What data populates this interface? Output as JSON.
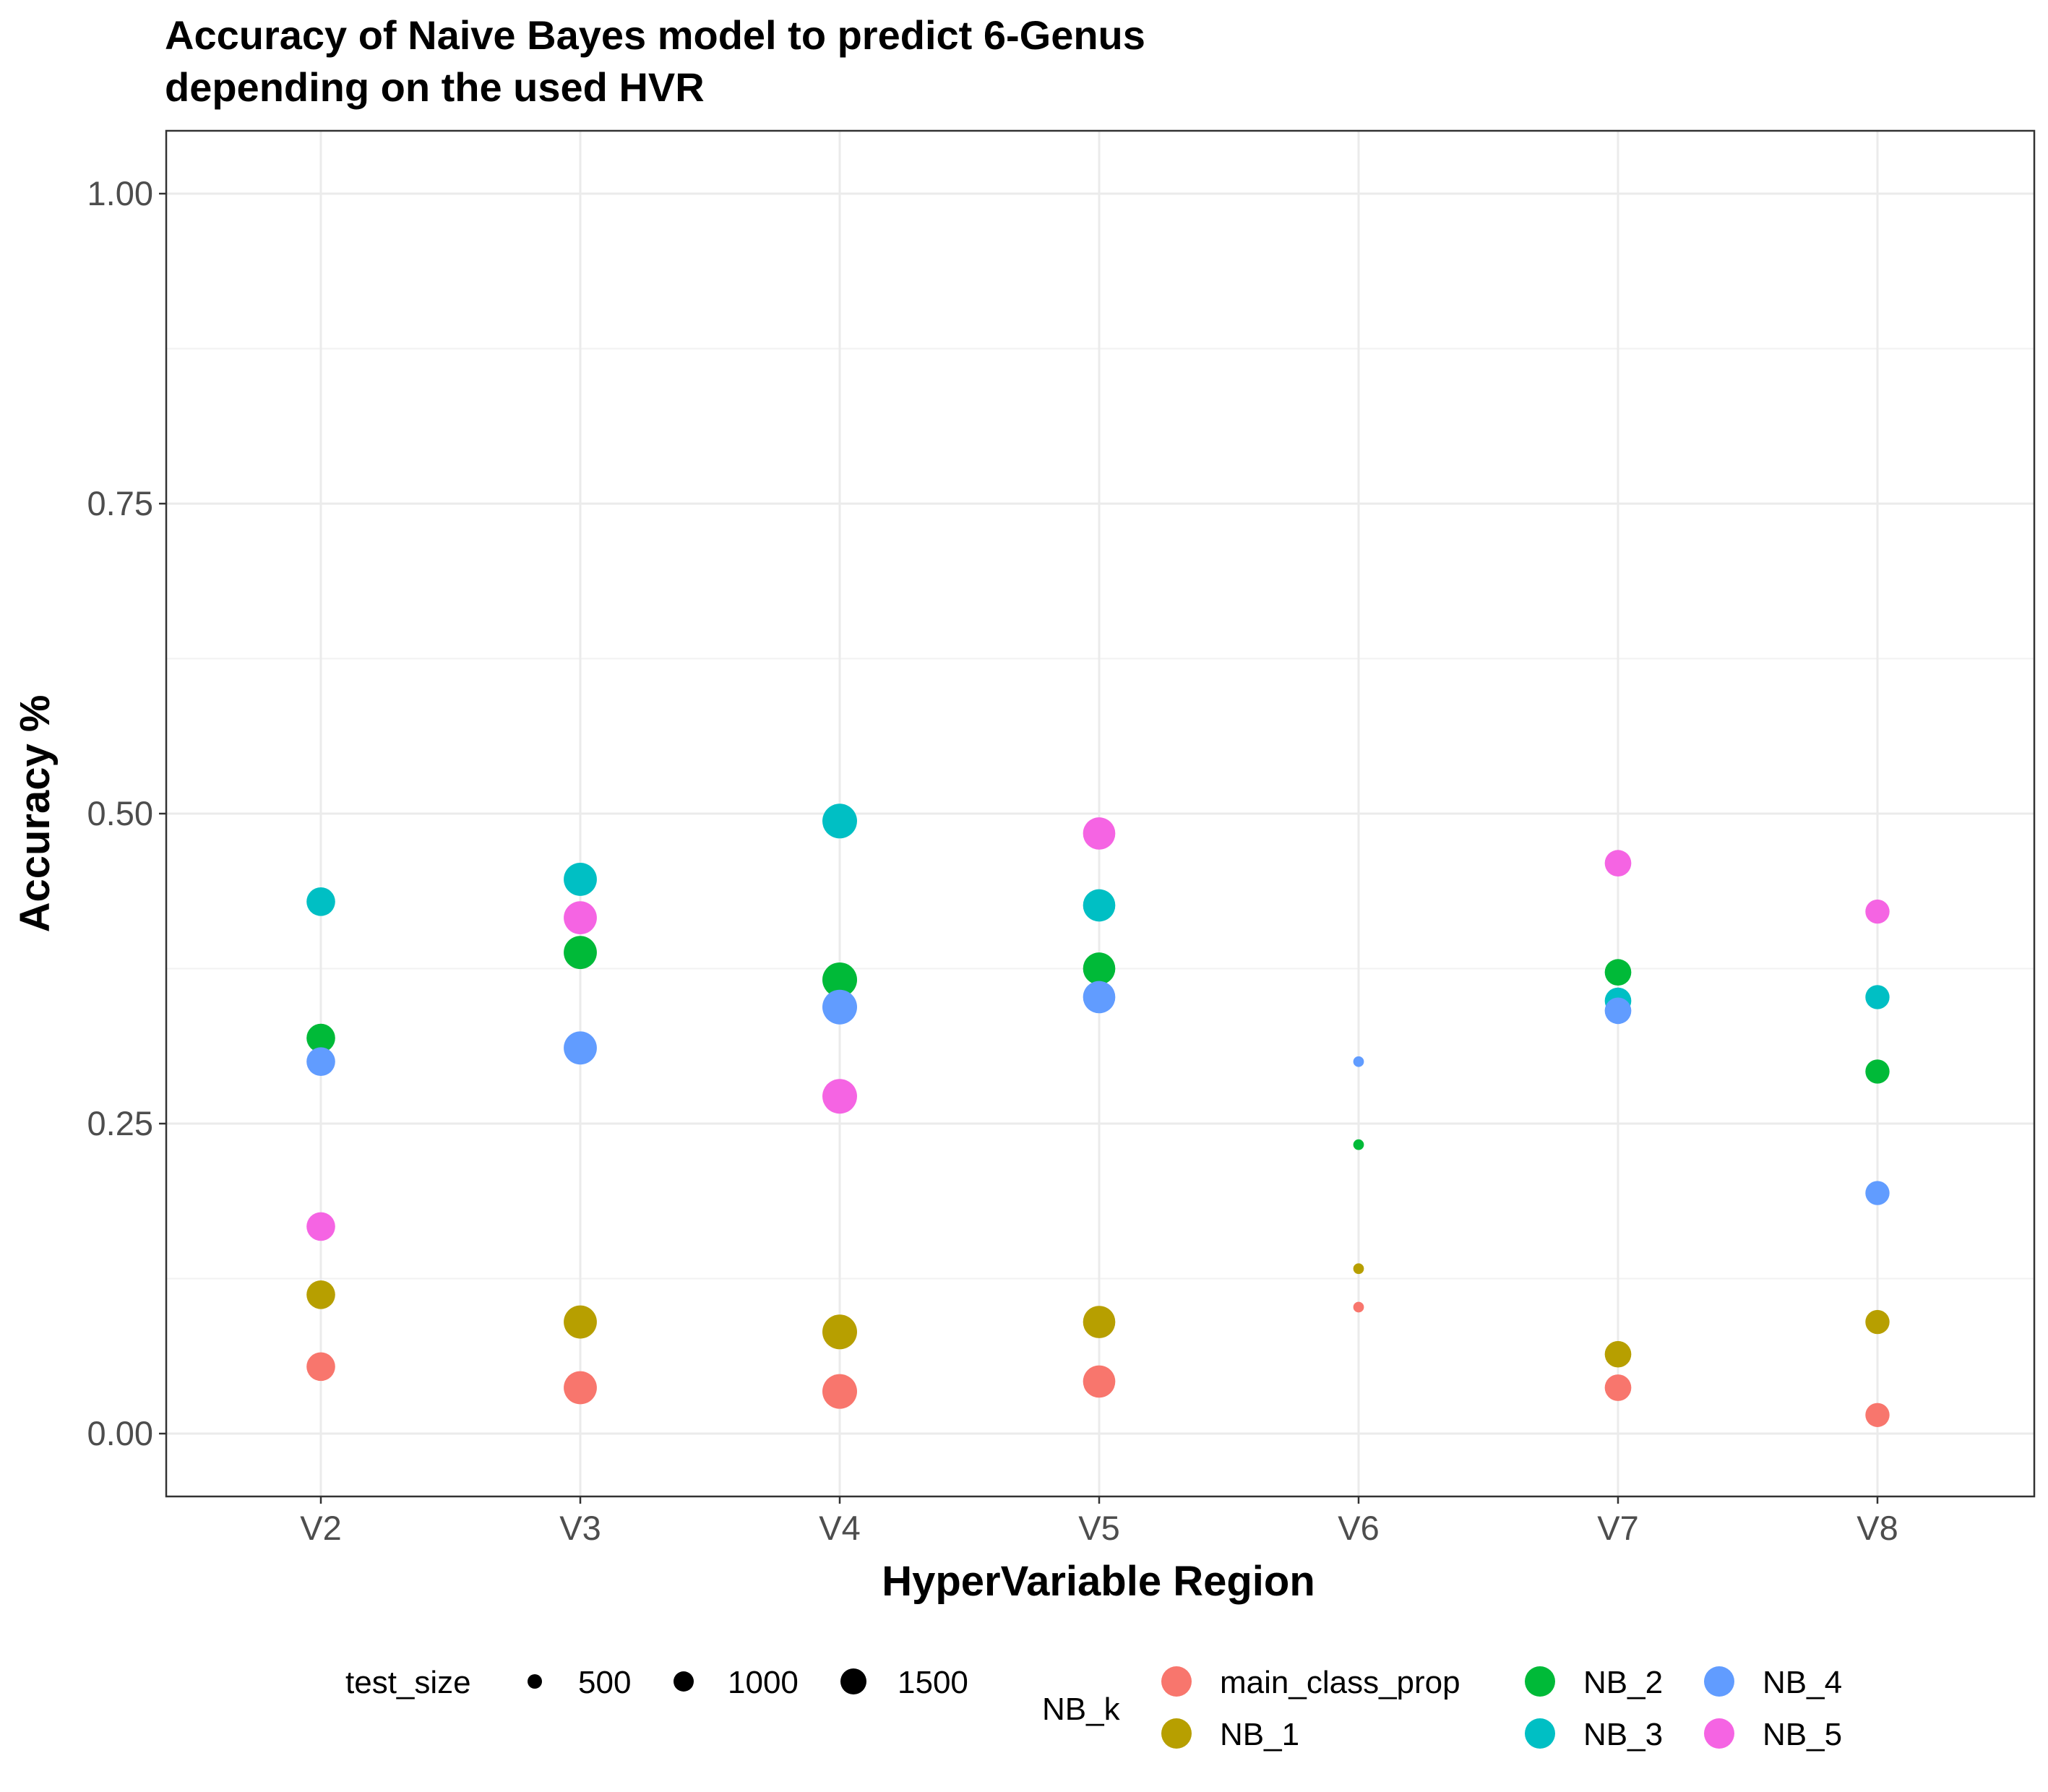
{
  "chart_data": {
    "type": "scatter",
    "title_line1": "Accuracy of Naive Bayes model to predict 6-Genus",
    "title_line2": "depending on the used HVR",
    "xlabel": "HyperVariable Region",
    "ylabel": "Accuracy %",
    "categories": [
      "V2",
      "V3",
      "V4",
      "V5",
      "V6",
      "V7",
      "V8"
    ],
    "ylim": [
      -0.1,
      1.05
    ],
    "yticks": [
      0.0,
      0.25,
      0.5,
      0.75,
      1.0
    ],
    "ytick_labels": [
      "0.00",
      "0.25",
      "0.50",
      "0.75",
      "1.00"
    ],
    "grid": true,
    "legend_position": "bottom",
    "size_legend": {
      "title": "test_size",
      "entries": [
        {
          "label": "500",
          "value": 500
        },
        {
          "label": "1000",
          "value": 1000
        },
        {
          "label": "1500",
          "value": 1500
        }
      ]
    },
    "color_legend": {
      "title": "NB_k",
      "entries": [
        {
          "label": "main_class_prop",
          "color": "#F8766D"
        },
        {
          "label": "NB_1",
          "color": "#B79F00"
        },
        {
          "label": "NB_2",
          "color": "#00BA38"
        },
        {
          "label": "NB_3",
          "color": "#00BFC4"
        },
        {
          "label": "NB_4",
          "color": "#619CFF"
        },
        {
          "label": "NB_5",
          "color": "#F564E3"
        }
      ]
    },
    "test_size_by_region": {
      "V2": 1000,
      "V3": 1500,
      "V4": 1700,
      "V5": 1400,
      "V6": 10,
      "V7": 800,
      "V8": 600
    },
    "series": [
      {
        "name": "main_class_prop",
        "color": "#F8766D",
        "values": [
          0.054,
          0.037,
          0.034,
          0.042,
          0.102,
          0.037,
          0.015
        ]
      },
      {
        "name": "NB_1",
        "color": "#B79F00",
        "values": [
          0.112,
          0.09,
          0.082,
          0.09,
          0.133,
          0.064,
          0.09
        ]
      },
      {
        "name": "NB_2",
        "color": "#00BA38",
        "values": [
          0.319,
          0.388,
          0.366,
          0.375,
          0.233,
          0.372,
          0.292
        ]
      },
      {
        "name": "NB_3",
        "color": "#00BFC4",
        "values": [
          0.429,
          0.447,
          0.494,
          0.426,
          null,
          0.349,
          0.352
        ]
      },
      {
        "name": "NB_4",
        "color": "#619CFF",
        "values": [
          0.3,
          0.311,
          0.344,
          0.352,
          0.3,
          0.341,
          0.194
        ]
      },
      {
        "name": "NB_5",
        "color": "#F564E3",
        "values": [
          0.167,
          0.416,
          0.272,
          0.484,
          null,
          0.46,
          0.421
        ]
      }
    ]
  }
}
